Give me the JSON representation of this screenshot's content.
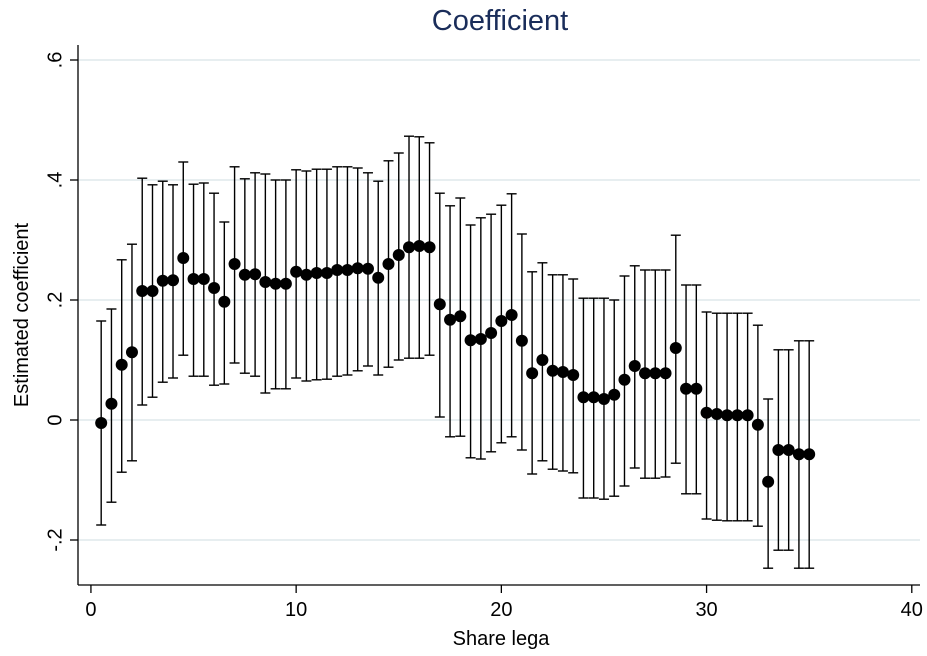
{
  "chart_data": {
    "type": "errorbar",
    "title": "Coefficient",
    "xlabel": "Share lega",
    "ylabel": "Estimated coefficient",
    "x": [
      0.5,
      1,
      1.5,
      2,
      2.5,
      3,
      3.5,
      4,
      4.5,
      5,
      5.5,
      6,
      6.5,
      7,
      7.5,
      8,
      8.5,
      9,
      9.5,
      10,
      10.5,
      11,
      11.5,
      12,
      12.5,
      13,
      13.5,
      14,
      14.5,
      15,
      15.5,
      16,
      16.5,
      17,
      17.5,
      18,
      18.5,
      19,
      19.5,
      20,
      20.5,
      21,
      21.5,
      22,
      22.5,
      23,
      23.5,
      24,
      24.5,
      25,
      25.5,
      26,
      26.5,
      27,
      27.5,
      28,
      28.5,
      29,
      29.5,
      30,
      30.5,
      31,
      31.5,
      32,
      32.5,
      33,
      33.5,
      34,
      34.5,
      35
    ],
    "values": [
      -0.005,
      0.027,
      0.092,
      0.113,
      0.215,
      0.215,
      0.232,
      0.233,
      0.27,
      0.235,
      0.235,
      0.22,
      0.197,
      0.26,
      0.242,
      0.243,
      0.23,
      0.227,
      0.227,
      0.247,
      0.242,
      0.245,
      0.245,
      0.25,
      0.25,
      0.253,
      0.252,
      0.237,
      0.26,
      0.275,
      0.288,
      0.29,
      0.288,
      0.193,
      0.167,
      0.173,
      0.133,
      0.135,
      0.145,
      0.165,
      0.175,
      0.132,
      0.078,
      0.1,
      0.082,
      0.08,
      0.075,
      0.038,
      0.038,
      0.035,
      0.042,
      0.067,
      0.09,
      0.078,
      0.078,
      0.078,
      0.12,
      0.052,
      0.052,
      0.012,
      0.01,
      0.008,
      0.008,
      0.008,
      -0.008,
      -0.103,
      -0.05,
      -0.05,
      -0.057,
      -0.057
    ],
    "lower": [
      -0.175,
      -0.137,
      -0.087,
      -0.068,
      0.025,
      0.038,
      0.063,
      0.07,
      0.108,
      0.073,
      0.073,
      0.058,
      0.06,
      0.095,
      0.078,
      0.073,
      0.045,
      0.052,
      0.052,
      0.07,
      0.065,
      0.067,
      0.068,
      0.073,
      0.075,
      0.082,
      0.09,
      0.075,
      0.088,
      0.1,
      0.103,
      0.103,
      0.108,
      0.005,
      -0.028,
      -0.027,
      -0.063,
      -0.065,
      -0.053,
      -0.038,
      -0.028,
      -0.05,
      -0.09,
      -0.068,
      -0.082,
      -0.085,
      -0.088,
      -0.13,
      -0.13,
      -0.132,
      -0.127,
      -0.11,
      -0.08,
      -0.097,
      -0.097,
      -0.095,
      -0.072,
      -0.123,
      -0.123,
      -0.165,
      -0.167,
      -0.168,
      -0.168,
      -0.168,
      -0.177,
      -0.247,
      -0.217,
      -0.217,
      -0.247,
      -0.247
    ],
    "upper": [
      0.165,
      0.185,
      0.267,
      0.293,
      0.403,
      0.392,
      0.398,
      0.392,
      0.43,
      0.393,
      0.395,
      0.378,
      0.33,
      0.422,
      0.402,
      0.412,
      0.41,
      0.4,
      0.4,
      0.417,
      0.415,
      0.418,
      0.418,
      0.422,
      0.422,
      0.42,
      0.412,
      0.398,
      0.432,
      0.445,
      0.473,
      0.472,
      0.462,
      0.378,
      0.357,
      0.37,
      0.325,
      0.337,
      0.343,
      0.358,
      0.377,
      0.31,
      0.247,
      0.262,
      0.242,
      0.242,
      0.235,
      0.203,
      0.203,
      0.203,
      0.2,
      0.24,
      0.257,
      0.25,
      0.25,
      0.25,
      0.308,
      0.225,
      0.225,
      0.18,
      0.178,
      0.178,
      0.178,
      0.178,
      0.158,
      0.035,
      0.117,
      0.117,
      0.132,
      0.132
    ],
    "color": "#000000",
    "xlim": [
      -0.63,
      40.4
    ],
    "xticks": [
      0,
      10,
      20,
      30,
      40
    ],
    "ylim": [
      -0.275,
      0.625
    ],
    "yticks": [
      {
        "value": -0.2,
        "label": "-.2"
      },
      0,
      {
        "value": 0.2,
        "label": ".2"
      },
      {
        "value": 0.4,
        "label": ".4"
      },
      {
        "value": 0.6,
        "label": ".6"
      }
    ],
    "grid": true
  }
}
